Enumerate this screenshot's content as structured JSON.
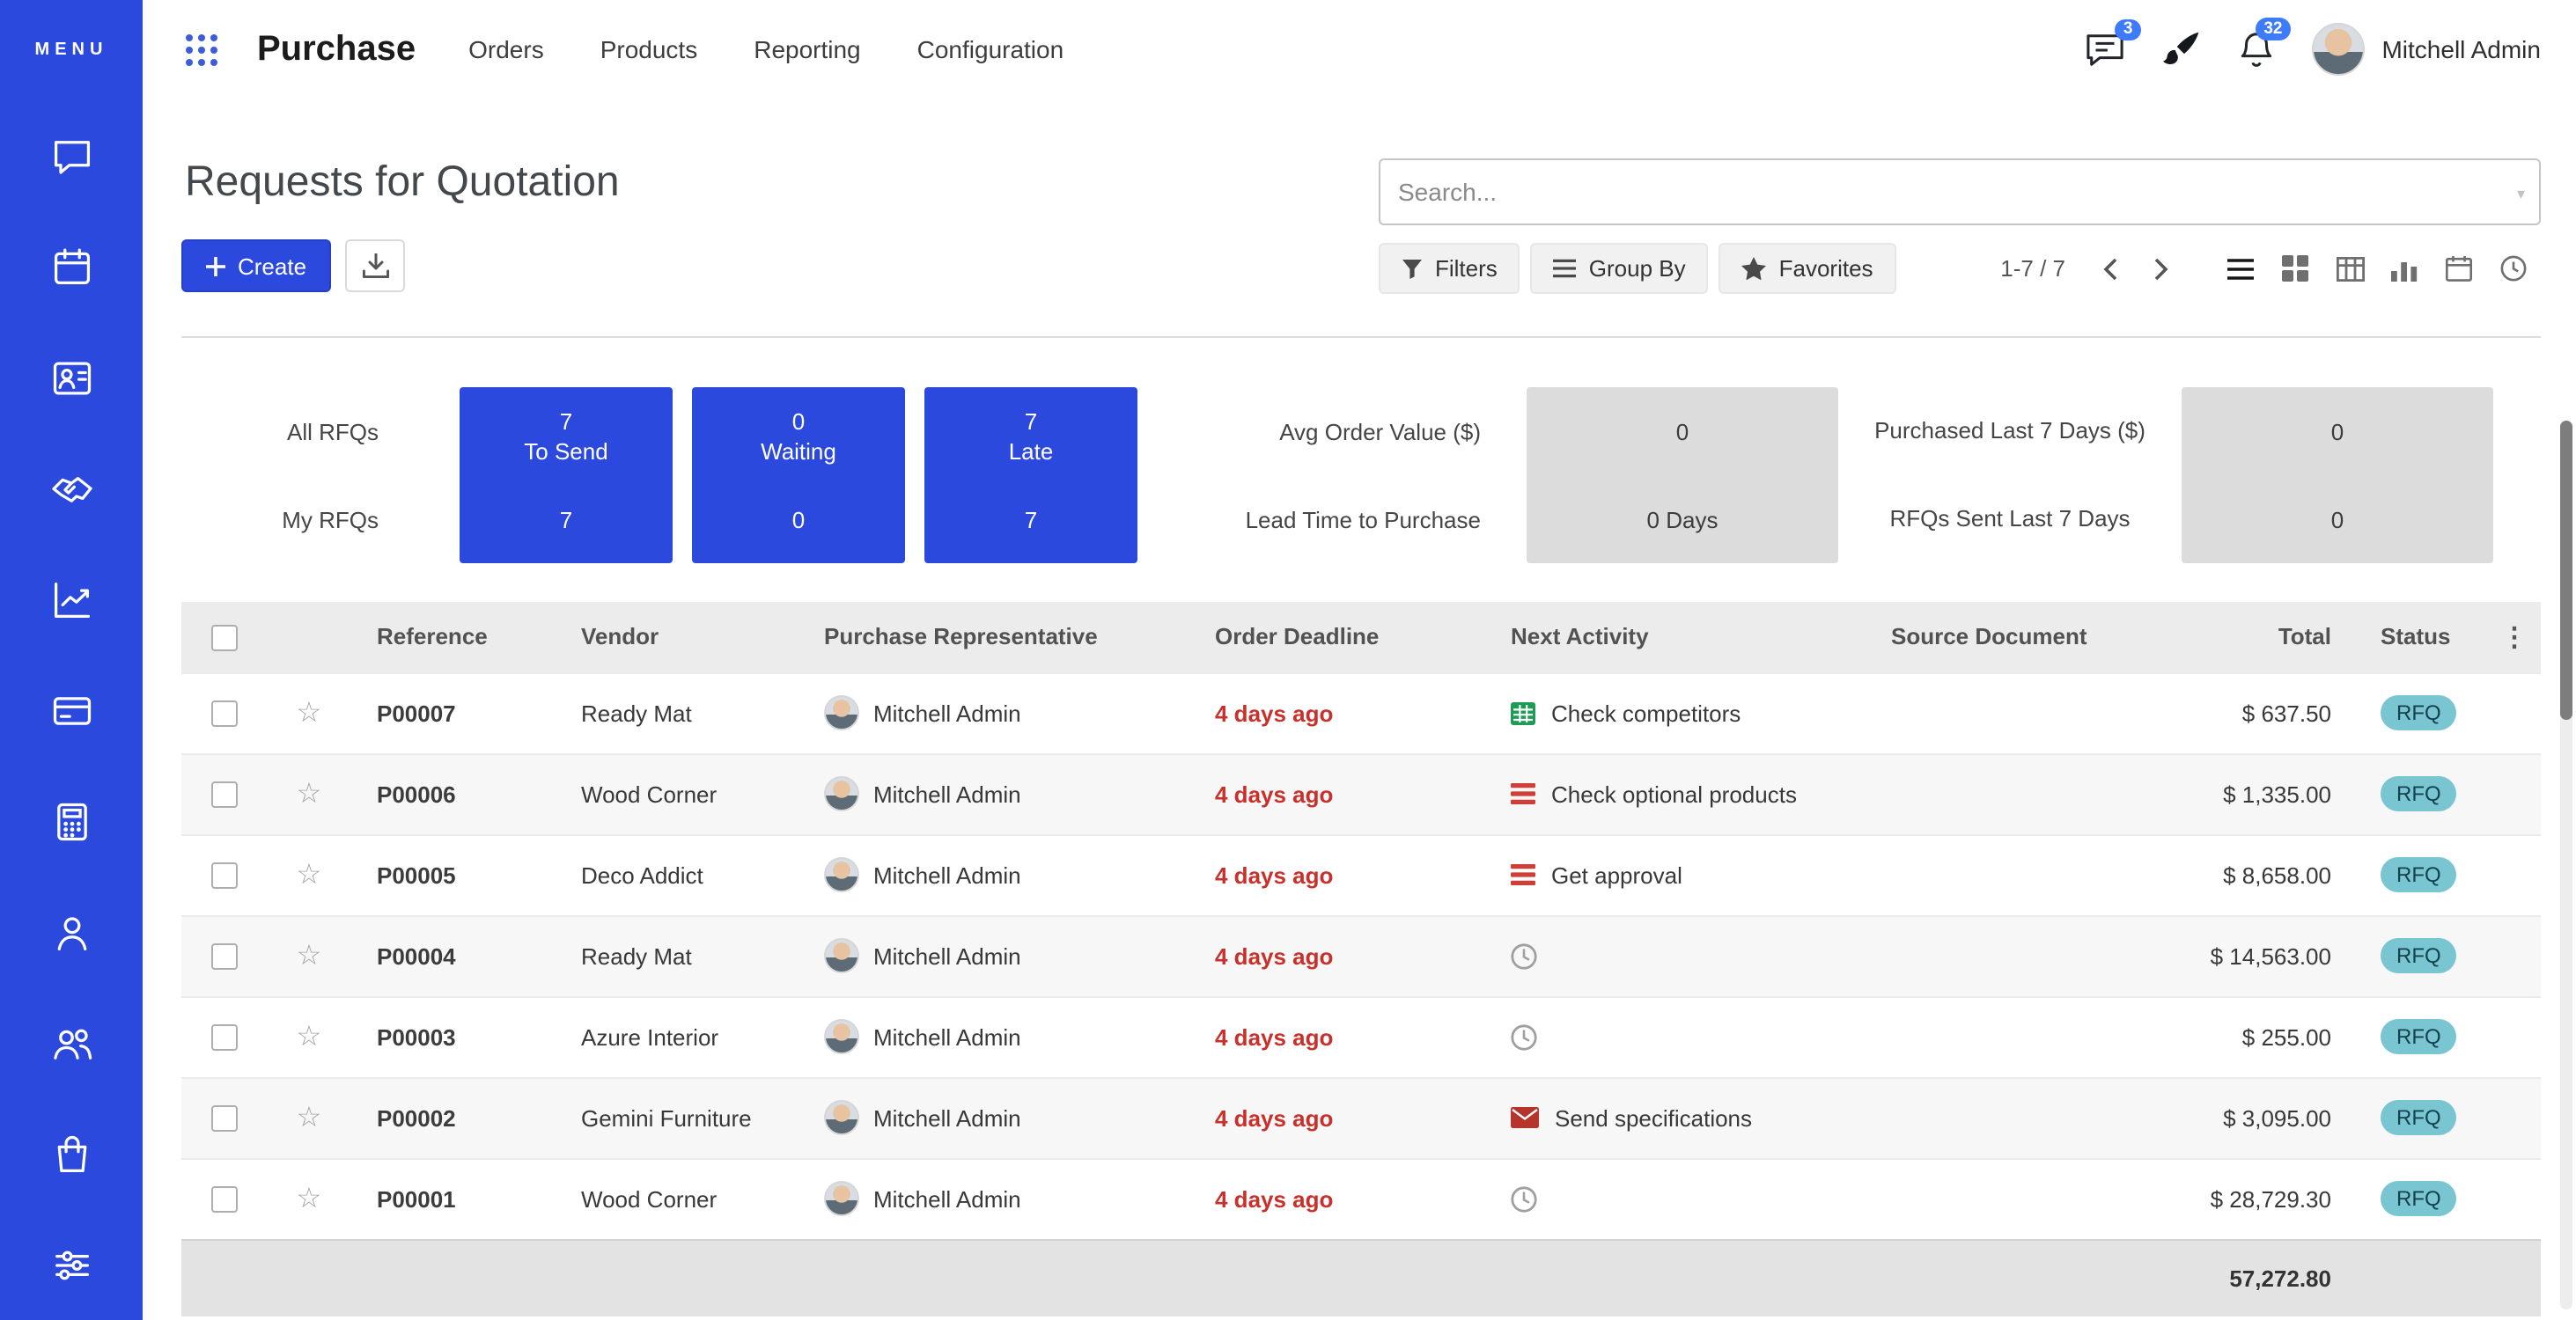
{
  "sidebar": {
    "menu_label": "MENU",
    "app_icons": [
      "discuss-icon",
      "calendar-icon",
      "contacts-icon",
      "crm-handshake-icon",
      "sales-chart-icon",
      "billing-card-icon",
      "calculator-icon",
      "employee-icon",
      "team-icon",
      "purchase-bag-icon",
      "settings-sliders-icon"
    ]
  },
  "navbar": {
    "app_name": "Purchase",
    "menu_items": [
      "Orders",
      "Products",
      "Reporting",
      "Configuration"
    ],
    "messages_badge": "3",
    "activities_badge": "32",
    "user_name": "Mitchell Admin"
  },
  "control_panel": {
    "title": "Requests for Quotation",
    "create_label": "Create",
    "search_placeholder": "Search...",
    "filters_label": "Filters",
    "group_by_label": "Group By",
    "favorites_label": "Favorites",
    "pager_text": "1-7 / 7",
    "view_switcher": [
      "list",
      "kanban",
      "pivot",
      "graph",
      "calendar",
      "activity"
    ],
    "active_view": "list"
  },
  "dashboard": {
    "row_labels": [
      "All RFQs",
      "My RFQs"
    ],
    "blue_tiles": [
      {
        "label": "To Send",
        "all": "7",
        "my": "7"
      },
      {
        "label": "Waiting",
        "all": "0",
        "my": "0"
      },
      {
        "label": "Late",
        "all": "7",
        "my": "7"
      }
    ],
    "metrics_left": [
      {
        "label": "Avg Order Value ($)",
        "value": "0"
      },
      {
        "label": "Lead Time to Purchase",
        "value": "0  Days"
      }
    ],
    "metrics_right": [
      {
        "label": "Purchased Last 7 Days ($)",
        "value": "0"
      },
      {
        "label": "RFQs Sent Last 7 Days",
        "value": "0"
      }
    ]
  },
  "table": {
    "columns": {
      "reference": "Reference",
      "vendor": "Vendor",
      "rep": "Purchase Representative",
      "deadline": "Order Deadline",
      "activity": "Next Activity",
      "source": "Source Document",
      "total": "Total",
      "status": "Status"
    },
    "rows": [
      {
        "reference": "P00007",
        "vendor": "Ready Mat",
        "rep": "Mitchell Admin",
        "deadline": "4 days ago",
        "activity": {
          "icon": "spreadsheet-green-icon",
          "label": "Check competitors"
        },
        "source": "",
        "total": "$ 637.50",
        "status": "RFQ"
      },
      {
        "reference": "P00006",
        "vendor": "Wood Corner",
        "rep": "Mitchell Admin",
        "deadline": "4 days ago",
        "activity": {
          "icon": "list-red-icon",
          "label": "Check optional products"
        },
        "source": "",
        "total": "$ 1,335.00",
        "status": "RFQ"
      },
      {
        "reference": "P00005",
        "vendor": "Deco Addict",
        "rep": "Mitchell Admin",
        "deadline": "4 days ago",
        "activity": {
          "icon": "list-red-icon",
          "label": "Get approval"
        },
        "source": "",
        "total": "$ 8,658.00",
        "status": "RFQ"
      },
      {
        "reference": "P00004",
        "vendor": "Ready Mat",
        "rep": "Mitchell Admin",
        "deadline": "4 days ago",
        "activity": {
          "icon": "clock-icon",
          "label": ""
        },
        "source": "",
        "total": "$ 14,563.00",
        "status": "RFQ"
      },
      {
        "reference": "P00003",
        "vendor": "Azure Interior",
        "rep": "Mitchell Admin",
        "deadline": "4 days ago",
        "activity": {
          "icon": "clock-icon",
          "label": ""
        },
        "source": "",
        "total": "$ 255.00",
        "status": "RFQ"
      },
      {
        "reference": "P00002",
        "vendor": "Gemini Furniture",
        "rep": "Mitchell Admin",
        "deadline": "4 days ago",
        "activity": {
          "icon": "envelope-red-icon",
          "label": "Send specifications"
        },
        "source": "",
        "total": "$ 3,095.00",
        "status": "RFQ"
      },
      {
        "reference": "P00001",
        "vendor": "Wood Corner",
        "rep": "Mitchell Admin",
        "deadline": "4 days ago",
        "activity": {
          "icon": "clock-icon",
          "label": ""
        },
        "source": "",
        "total": "$ 28,729.30",
        "status": "RFQ"
      }
    ],
    "footer_total": "57,272.80"
  },
  "colors": {
    "primary_blue": "#2b49dd",
    "tile_gray": "#dcdcdc",
    "status_badge_bg": "#79c5d2",
    "deadline_red": "#c8312b",
    "badge_blue": "#3e7bfa"
  }
}
